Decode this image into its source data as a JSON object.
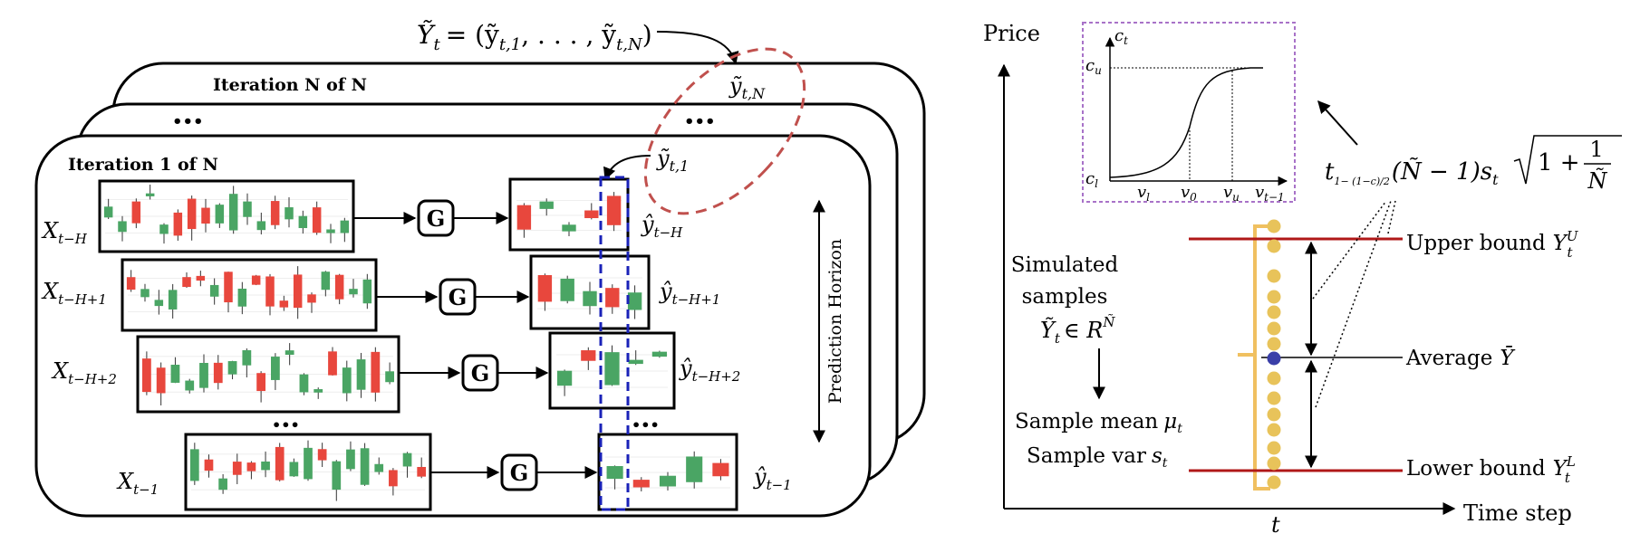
{
  "left": {
    "top_eq": {
      "lhs": "Ỹ",
      "lhs_sub": "t",
      "rhs": "= (ỹ",
      "rhs_sub1": "t,1",
      "rhs_mid": ", . . . , ỹ",
      "rhs_sub2": "t,N",
      "rhs_end": ")"
    },
    "iter_n_label": "Iteration N of N",
    "iter_1_label": "Iteration 1 of N",
    "dots": "•••",
    "y_tn": {
      "base": "ỹ",
      "sub": "t,N"
    },
    "y_t1": {
      "base": "ỹ",
      "sub": "t,1"
    },
    "generator": "G",
    "prediction_horizon": "Prediction Horizon",
    "rows": [
      {
        "x_base": "X",
        "x_sub": "t−H",
        "y_base": "ŷ",
        "y_sub": "t−H"
      },
      {
        "x_base": "X",
        "x_sub": "t−H+1",
        "y_base": "ŷ",
        "y_sub": "t−H+1"
      },
      {
        "x_base": "X",
        "x_sub": "t−H+2",
        "y_base": "ŷ",
        "y_sub": "t−H+2"
      },
      {
        "x_base": "X",
        "x_sub": "t−1",
        "y_base": "ŷ",
        "y_sub": "t−1"
      }
    ]
  },
  "right": {
    "price": "Price",
    "time_step": "Time step",
    "t": "t",
    "inset": {
      "c_t": "c",
      "c_t_sub": "t",
      "c_u": "c",
      "c_u_sub": "u",
      "c_l": "c",
      "c_l_sub": "l",
      "v_l": "v",
      "v_l_sub": "l",
      "v_0": "v",
      "v_0_sub": "0",
      "v_u": "v",
      "v_u_sub": "u",
      "v_t1": "v",
      "v_t1_sub": "t−1"
    },
    "formula": {
      "t": "t",
      "t_sub": "1− (1−c)/2",
      "mid": "(Ñ − 1)s",
      "s_sub": "t",
      "sqrt_text": "1 +",
      "frac_num": "1",
      "frac_den": "Ñ"
    },
    "simulated": [
      "Simulated",
      "samples"
    ],
    "set_expr": {
      "base": "Ỹ",
      "sub": "t",
      "rest": "∈ R",
      "sup": "Ñ"
    },
    "arrow_down": "↓",
    "sample_mean": {
      "text": "Sample mean",
      "sym": "μ",
      "sub": "t"
    },
    "sample_var": {
      "text": "Sample var",
      "sym": "s",
      "sub": "t"
    },
    "upper_bound": {
      "text": "Upper bound",
      "sym": "Y",
      "sub": "t",
      "sup": "U"
    },
    "average": {
      "text": "Average",
      "sym": "Ȳ"
    },
    "lower_bound": {
      "text": "Lower bound",
      "sym": "Y",
      "sub": "t",
      "sup": "L"
    }
  },
  "colors": {
    "green": "#4aa564",
    "red": "#e8473d",
    "ellipse": "#c0504d",
    "dashed_box": "#1a22b8",
    "inset_border": "#a872c8",
    "bracket": "#f0c060",
    "dot": "#e8c35a",
    "mean_dot": "#3a3fa8",
    "bound": "#b01818"
  }
}
